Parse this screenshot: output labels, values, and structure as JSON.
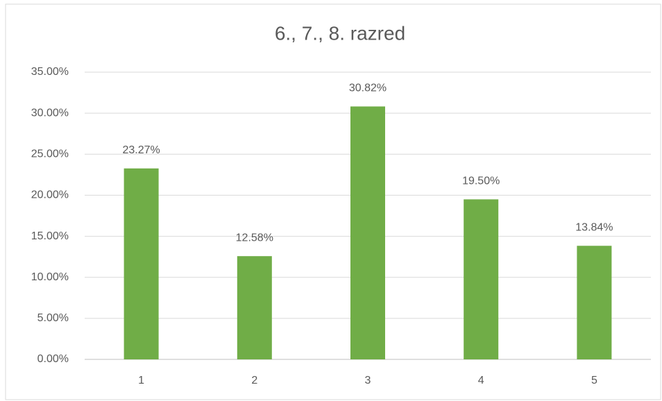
{
  "chart_data": {
    "type": "bar",
    "title": "6., 7., 8. razred",
    "categories": [
      "1",
      "2",
      "3",
      "4",
      "5"
    ],
    "values": [
      23.27,
      12.58,
      30.82,
      19.5,
      13.84
    ],
    "value_labels": [
      "23.27%",
      "12.58%",
      "30.82%",
      "19.50%",
      "13.84%"
    ],
    "color": "#70ad47",
    "ylim": [
      0,
      35
    ],
    "yticks": [
      {
        "value": 0,
        "label": "0.00%"
      },
      {
        "value": 5,
        "label": "5.00%"
      },
      {
        "value": 10,
        "label": "10.00%"
      },
      {
        "value": 15,
        "label": "15.00%"
      },
      {
        "value": 20,
        "label": "20.00%"
      },
      {
        "value": 25,
        "label": "25.00%"
      },
      {
        "value": 30,
        "label": "30.00%"
      },
      {
        "value": 35,
        "label": "35.00%"
      }
    ],
    "grid": true
  }
}
